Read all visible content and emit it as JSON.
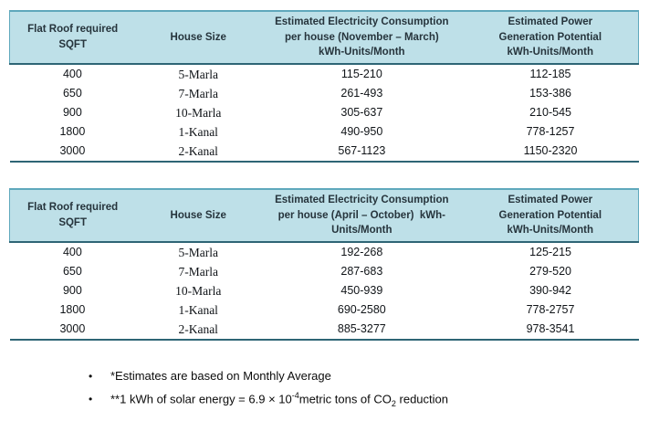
{
  "colors": {
    "header_bg": "#BEE0E8",
    "border_medium_teal": "#5FA8BC",
    "border_dark_slate": "#2E6575",
    "header_text": "#26343C",
    "body_text": "#101418"
  },
  "table1": {
    "season_label": "November - March",
    "headers": {
      "col1": [
        "Flat Roof required",
        "SQFT"
      ],
      "col2": [
        "House Size"
      ],
      "col3": [
        "Estimated Electricity Consumption",
        "per house (November – March)",
        "kWh-Units/Month"
      ],
      "col4": [
        "Estimated Power",
        "Generation Potential",
        "kWh-Units/Month"
      ]
    },
    "rows": [
      [
        "400",
        "5-Marla",
        "115-210",
        "112-185"
      ],
      [
        "650",
        "7-Marla",
        "261-493",
        "153-386"
      ],
      [
        "900",
        "10-Marla",
        "305-637",
        "210-545"
      ],
      [
        "1800",
        "1-Kanal",
        "490-950",
        "778-1257"
      ],
      [
        "3000",
        "2-Kanal",
        "567-1123",
        "1150-2320"
      ]
    ]
  },
  "table2": {
    "season_label": "April - October",
    "headers": {
      "col1": [
        "Flat Roof required",
        "SQFT"
      ],
      "col2": [
        "House Size"
      ],
      "col3": [
        "Estimated Electricity Consumption",
        "per house (April – October)  kWh-",
        "Units/Month"
      ],
      "col4": [
        "Estimated Power",
        "Generation Potential",
        "kWh-Units/Month"
      ]
    },
    "rows": [
      [
        "400",
        "5-Marla",
        "192-268",
        "125-215"
      ],
      [
        "650",
        "7-Marla",
        "287-683",
        "279-520"
      ],
      [
        "900",
        "10-Marla",
        "450-939",
        "390-942"
      ],
      [
        "1800",
        "1-Kanal",
        "690-2580",
        "778-2757"
      ],
      [
        "3000",
        "2-Kanal",
        "885-3277",
        "978-3541"
      ]
    ]
  },
  "footnotes": [
    {
      "bullet": "•",
      "text": "*Estimates are based on Monthly Average"
    },
    {
      "bullet": "•",
      "parts": [
        "**1 kWh of solar energy = 6.9 × 10",
        "-4",
        "metric tons of CO",
        "2",
        " reduction"
      ]
    }
  ]
}
